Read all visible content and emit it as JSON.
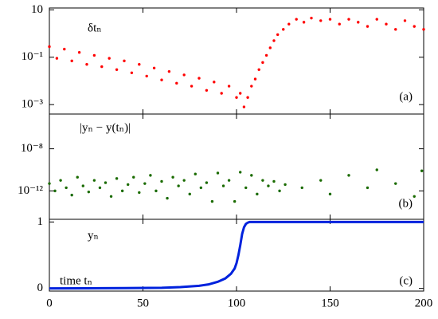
{
  "chart_data": [
    {
      "type": "scatter",
      "color": "#ff0000",
      "log_y": true,
      "xlim": [
        0,
        200
      ],
      "xticks": [
        0,
        50,
        100,
        150,
        200
      ],
      "ylim": [
        0.0004,
        12
      ],
      "yticks": [
        {
          "value": 10,
          "label": "10"
        },
        {
          "value": 0.1,
          "label": "10⁻¹"
        },
        {
          "value": 0.001,
          "label": "10⁻³"
        }
      ],
      "annotations": [
        "δtₙ",
        "(a)"
      ],
      "x": [
        0,
        4,
        8,
        12,
        16,
        20,
        24,
        28,
        32,
        36,
        40,
        44,
        48,
        52,
        56,
        60,
        64,
        68,
        72,
        76,
        80,
        84,
        88,
        92,
        96,
        100,
        102,
        104,
        106,
        108,
        110,
        112,
        114,
        116,
        118,
        120,
        122,
        125,
        128,
        132,
        136,
        140,
        145,
        150,
        155,
        160,
        165,
        170,
        175,
        180,
        185,
        190,
        195,
        200
      ],
      "values": [
        0.28,
        0.09,
        0.22,
        0.07,
        0.16,
        0.05,
        0.12,
        0.04,
        0.09,
        0.03,
        0.07,
        0.022,
        0.05,
        0.016,
        0.035,
        0.011,
        0.025,
        0.008,
        0.018,
        0.006,
        0.013,
        0.004,
        0.009,
        0.003,
        0.006,
        0.002,
        0.003,
        0.0008,
        0.002,
        0.006,
        0.012,
        0.03,
        0.06,
        0.12,
        0.25,
        0.5,
        0.9,
        1.5,
        2.5,
        4,
        3,
        4.5,
        3.5,
        4,
        2.5,
        4,
        3,
        2,
        4,
        2.5,
        1.5,
        3.5,
        2,
        1.5
      ]
    },
    {
      "type": "scatter",
      "color": "#1a6b00",
      "log_y": true,
      "xlim": [
        0,
        200
      ],
      "xticks": [
        0,
        50,
        100,
        150,
        200
      ],
      "ylim": [
        2e-15,
        2e-05
      ],
      "yticks": [
        {
          "value": 1e-08,
          "label": "10⁻⁸"
        },
        {
          "value": 1e-12,
          "label": "10⁻¹²"
        }
      ],
      "annotations": [
        "|yₙ − y(tₙ)|",
        "(b)"
      ],
      "x": [
        0,
        3,
        6,
        9,
        12,
        15,
        18,
        21,
        24,
        27,
        30,
        33,
        36,
        39,
        42,
        45,
        48,
        51,
        54,
        57,
        60,
        63,
        66,
        69,
        72,
        75,
        78,
        81,
        84,
        87,
        90,
        93,
        96,
        99,
        102,
        105,
        108,
        111,
        114,
        117,
        120,
        123,
        126,
        135,
        145,
        150,
        160,
        170,
        175,
        185,
        195,
        199
      ],
      "values": [
        5e-12,
        1e-12,
        1e-11,
        2e-12,
        4e-13,
        2e-11,
        3e-12,
        8e-13,
        1e-11,
        2e-12,
        6e-12,
        3e-13,
        1.5e-11,
        1e-12,
        4e-12,
        2e-11,
        7e-13,
        5e-12,
        3e-11,
        1e-12,
        8e-12,
        2e-13,
        2e-11,
        3e-12,
        1e-11,
        5e-13,
        4e-11,
        2e-12,
        6e-12,
        1e-13,
        5e-11,
        3e-12,
        1e-11,
        1e-13,
        6e-11,
        2e-12,
        3e-11,
        5e-13,
        1e-11,
        3e-12,
        8e-12,
        1e-12,
        4e-12,
        2e-12,
        1e-11,
        5e-13,
        3e-11,
        2e-12,
        1e-10,
        5e-12,
        3e-13,
        8e-11
      ]
    },
    {
      "type": "line",
      "color": "#0022dd",
      "log_y": false,
      "xlim": [
        0,
        200
      ],
      "xticks": [
        0,
        50,
        100,
        150,
        200
      ],
      "ylim": [
        -0.04,
        1.04
      ],
      "yticks": [
        0,
        1
      ],
      "annotations": [
        "yₙ",
        "time tₙ",
        "(c)"
      ],
      "x": [
        0,
        20,
        40,
        60,
        70,
        80,
        85,
        90,
        94,
        97,
        99,
        100,
        101,
        102,
        103,
        104,
        105,
        106,
        107,
        120,
        150,
        200
      ],
      "values": [
        0,
        0.002,
        0.005,
        0.01,
        0.02,
        0.04,
        0.06,
        0.1,
        0.15,
        0.22,
        0.3,
        0.38,
        0.5,
        0.65,
        0.82,
        0.92,
        0.97,
        0.99,
        1,
        1,
        1,
        1
      ]
    }
  ]
}
